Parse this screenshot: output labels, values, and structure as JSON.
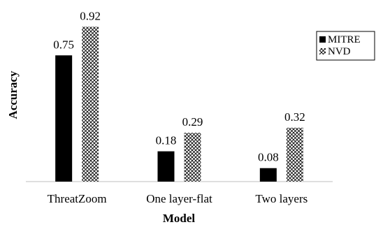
{
  "chart_data": {
    "type": "bar",
    "title": "",
    "xlabel": "Model",
    "ylabel": "Accuracy",
    "categories": [
      "ThreatZoom",
      "One layer-flat",
      "Two layers"
    ],
    "series": [
      {
        "name": "MITRE",
        "values": [
          0.75,
          0.18,
          0.08
        ],
        "value_labels": [
          "0.75",
          "0.18",
          "0.08"
        ],
        "color": "#000000",
        "pattern": "solid"
      },
      {
        "name": "NVD",
        "values": [
          0.92,
          0.29,
          0.32
        ],
        "value_labels": [
          "0.92",
          "0.29",
          "0.32"
        ],
        "color": "#000000",
        "pattern": "crosshatch"
      }
    ],
    "ylim": [
      0,
      1
    ],
    "y_axis_visible": false,
    "grid": false,
    "legend": "right"
  }
}
